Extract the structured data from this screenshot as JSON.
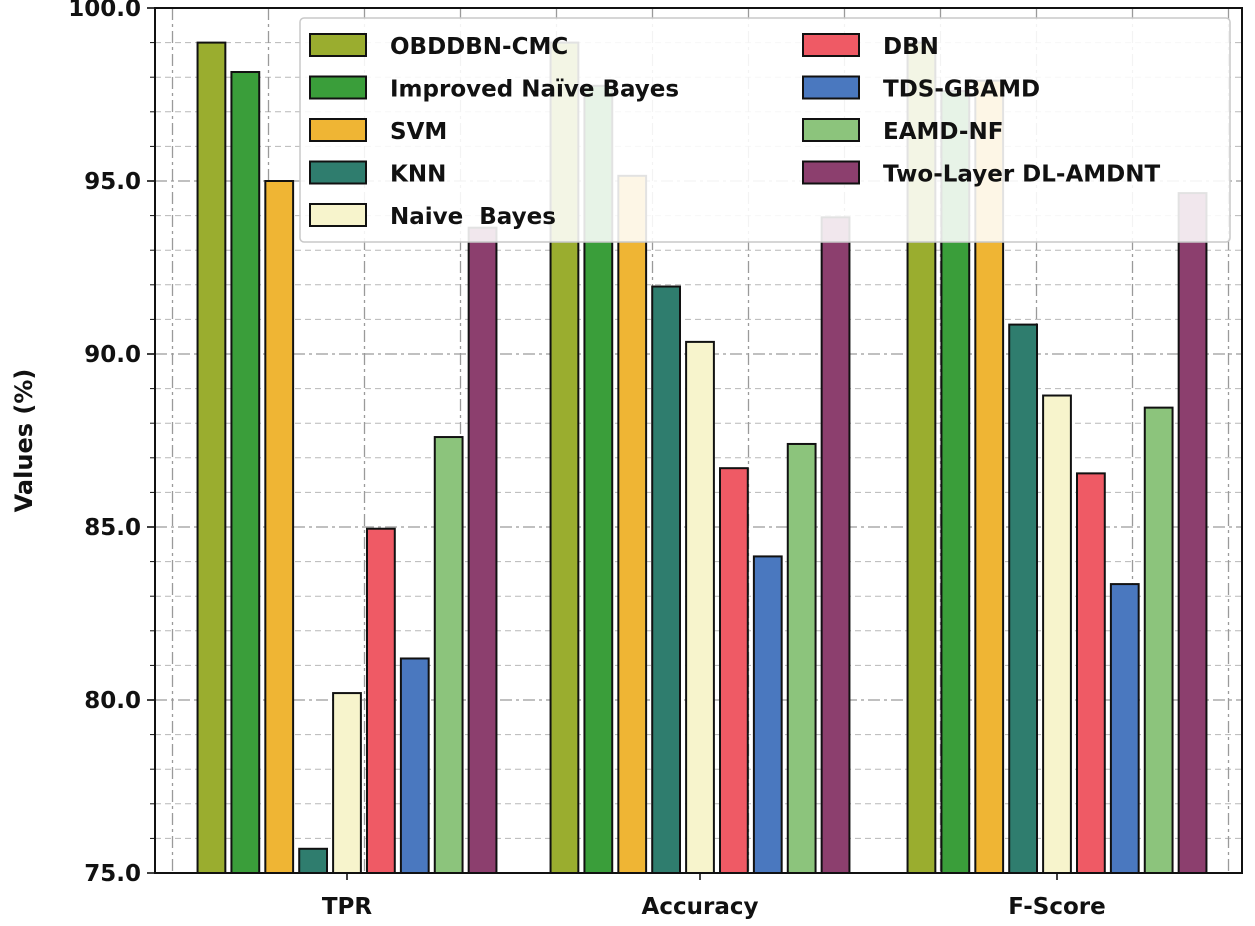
{
  "chart_data": {
    "type": "bar",
    "title": "",
    "xlabel": "",
    "ylabel": "Values (%)",
    "ylim": [
      75,
      100
    ],
    "y_ticks": [
      "75.0",
      "80.0",
      "85.0",
      "90.0",
      "95.0",
      "100.0"
    ],
    "categories": [
      "TPR",
      "Accuracy",
      "F-Score"
    ],
    "grid": true,
    "legend_position": "top-right",
    "series": [
      {
        "name": "OBDDBN-CMC",
        "color": "#9aad2f",
        "values": [
          99.0,
          99.0,
          99.0
        ]
      },
      {
        "name": "Improved Naïve Bayes",
        "color": "#3a9e3a",
        "values": [
          98.15,
          97.75,
          97.6
        ]
      },
      {
        "name": "SVM",
        "color": "#efb534",
        "values": [
          95.0,
          95.15,
          97.9
        ]
      },
      {
        "name": "KNN",
        "color": "#2f7d6e",
        "values": [
          75.7,
          91.95,
          90.85
        ]
      },
      {
        "name": "Naive  Bayes",
        "color": "#f7f4cc",
        "values": [
          80.2,
          90.35,
          88.8
        ]
      },
      {
        "name": "DBN",
        "color": "#ef5a65",
        "values": [
          84.95,
          86.7,
          86.55
        ]
      },
      {
        "name": "TDS-GBAMD",
        "color": "#4a78bf",
        "values": [
          81.2,
          84.15,
          83.35
        ]
      },
      {
        "name": "EAMD-NF",
        "color": "#8cc47c",
        "values": [
          87.6,
          87.4,
          88.45
        ]
      },
      {
        "name": "Two-Layer DL-AMDNT",
        "color": "#8c3f6e",
        "values": [
          93.65,
          93.95,
          94.65
        ]
      }
    ]
  }
}
